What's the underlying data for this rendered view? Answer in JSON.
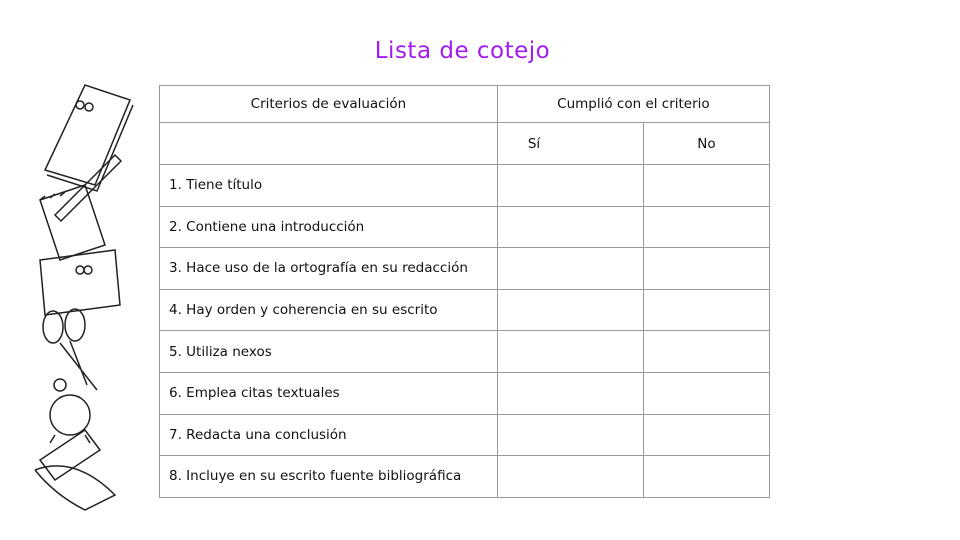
{
  "title": "Lista de cotejo",
  "table": {
    "header_criteria": "Criterios de evaluación",
    "header_met": "Cumplió con el criterio",
    "yes": "Sí",
    "no": "No",
    "rows": [
      "1. Tiene título",
      "2. Contiene una introducción",
      "3. Hace uso de la ortografía en su redacción",
      "4. Hay orden y coherencia en su escrito",
      "5. Utiliza nexos",
      "6. Emplea citas textuales",
      "7. Redacta una conclusión",
      "8. Incluye en su escrito fuente bibliográfica"
    ]
  },
  "colors": {
    "title": "#a21cf0",
    "border": "#999999"
  },
  "decoration": "school-supplies-illustration"
}
